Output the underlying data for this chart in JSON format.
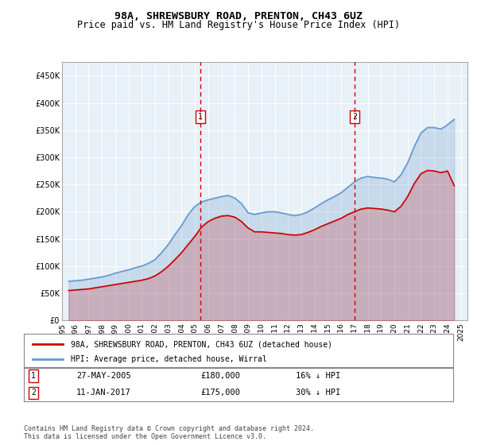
{
  "title": "98A, SHREWSBURY ROAD, PRENTON, CH43 6UZ",
  "subtitle": "Price paid vs. HM Land Registry's House Price Index (HPI)",
  "legend_line1": "98A, SHREWSBURY ROAD, PRENTON, CH43 6UZ (detached house)",
  "legend_line2": "HPI: Average price, detached house, Wirral",
  "annotation1": {
    "label": "1",
    "date": "27-MAY-2005",
    "price": "£180,000",
    "note": "16% ↓ HPI",
    "x_year": 2005.4
  },
  "annotation2": {
    "label": "2",
    "date": "11-JAN-2017",
    "price": "£175,000",
    "note": "30% ↓ HPI",
    "x_year": 2017.03
  },
  "footer": "Contains HM Land Registry data © Crown copyright and database right 2024.\nThis data is licensed under the Open Government Licence v3.0.",
  "hpi_color": "#6699cc",
  "price_color": "#cc0000",
  "dashed_color": "#cc0000",
  "bg_color": "#e8f0f8",
  "ylim": [
    0,
    475000
  ],
  "xlim_start": 1995.0,
  "xlim_end": 2025.5,
  "yticks": [
    0,
    50000,
    100000,
    150000,
    200000,
    250000,
    300000,
    350000,
    400000,
    450000
  ],
  "xticks": [
    1995,
    1996,
    1997,
    1998,
    1999,
    2000,
    2001,
    2002,
    2003,
    2004,
    2005,
    2006,
    2007,
    2008,
    2009,
    2010,
    2011,
    2012,
    2013,
    2014,
    2015,
    2016,
    2017,
    2018,
    2019,
    2020,
    2021,
    2022,
    2023,
    2024,
    2025
  ],
  "hpi_data": {
    "years": [
      1995.5,
      1996.0,
      1996.5,
      1997.0,
      1997.5,
      1998.0,
      1998.5,
      1999.0,
      1999.5,
      2000.0,
      2000.5,
      2001.0,
      2001.5,
      2002.0,
      2002.5,
      2003.0,
      2003.5,
      2004.0,
      2004.5,
      2005.0,
      2005.5,
      2006.0,
      2006.5,
      2007.0,
      2007.5,
      2008.0,
      2008.5,
      2009.0,
      2009.5,
      2010.0,
      2010.5,
      2011.0,
      2011.5,
      2012.0,
      2012.5,
      2013.0,
      2013.5,
      2014.0,
      2014.5,
      2015.0,
      2015.5,
      2016.0,
      2016.5,
      2017.0,
      2017.5,
      2018.0,
      2018.5,
      2019.0,
      2019.5,
      2020.0,
      2020.5,
      2021.0,
      2021.5,
      2022.0,
      2022.5,
      2023.0,
      2023.5,
      2024.0,
      2024.5
    ],
    "values": [
      72000,
      73000,
      74000,
      76000,
      78000,
      80000,
      83000,
      87000,
      90000,
      93000,
      97000,
      100000,
      105000,
      112000,
      125000,
      140000,
      158000,
      175000,
      195000,
      210000,
      218000,
      222000,
      225000,
      228000,
      230000,
      225000,
      215000,
      198000,
      195000,
      198000,
      200000,
      200000,
      198000,
      195000,
      193000,
      195000,
      200000,
      207000,
      215000,
      222000,
      228000,
      235000,
      245000,
      255000,
      262000,
      265000,
      263000,
      262000,
      260000,
      255000,
      268000,
      290000,
      320000,
      345000,
      355000,
      355000,
      352000,
      360000,
      370000
    ]
  },
  "price_data": {
    "years": [
      1995.5,
      1996.0,
      1996.5,
      1997.0,
      1997.5,
      1998.0,
      1998.5,
      1999.0,
      1999.5,
      2000.0,
      2000.5,
      2001.0,
      2001.5,
      2002.0,
      2002.5,
      2003.0,
      2003.5,
      2004.0,
      2004.5,
      2005.0,
      2005.5,
      2006.0,
      2006.5,
      2007.0,
      2007.5,
      2008.0,
      2008.5,
      2009.0,
      2009.5,
      2010.0,
      2010.5,
      2011.0,
      2011.5,
      2012.0,
      2012.5,
      2013.0,
      2013.5,
      2014.0,
      2014.5,
      2015.0,
      2015.5,
      2016.0,
      2016.5,
      2017.0,
      2017.5,
      2018.0,
      2018.5,
      2019.0,
      2019.5,
      2020.0,
      2020.5,
      2021.0,
      2021.5,
      2022.0,
      2022.5,
      2023.0,
      2023.5,
      2024.0,
      2024.5
    ],
    "values": [
      55000,
      56000,
      57000,
      58000,
      60000,
      62000,
      64000,
      66000,
      68000,
      70000,
      72000,
      74000,
      77000,
      82000,
      90000,
      100000,
      112000,
      125000,
      140000,
      155000,
      172000,
      182000,
      188000,
      192000,
      193000,
      190000,
      182000,
      170000,
      163000,
      163000,
      162000,
      161000,
      160000,
      158000,
      157000,
      158000,
      162000,
      167000,
      173000,
      178000,
      183000,
      188000,
      195000,
      200000,
      205000,
      207000,
      206000,
      205000,
      203000,
      200000,
      210000,
      228000,
      252000,
      270000,
      276000,
      275000,
      272000,
      275000,
      248000
    ]
  }
}
